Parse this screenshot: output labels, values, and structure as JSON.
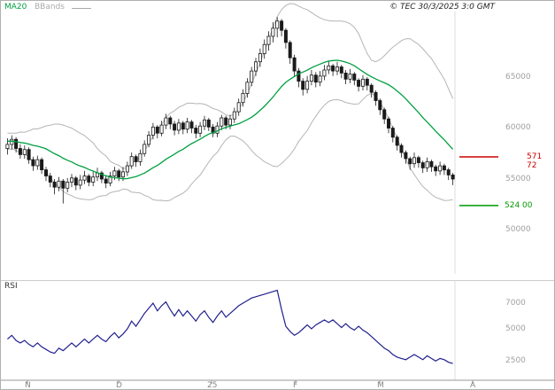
{
  "header": {
    "ma20_label": "MA20",
    "bbands_label": "BBands",
    "copyright": "© TEC 30/3/2025 3:0 GMT"
  },
  "colors": {
    "ma20": "#00a040",
    "bbands": "#b5b5b5",
    "candle": "#1a1a1a",
    "rsi": "#202090",
    "level_resistance": "#cc0000",
    "level_support": "#009900"
  },
  "chart_data": [
    {
      "type": "candlestick",
      "title": "",
      "xlabel": "",
      "ylabel": "",
      "y_range": [
        48500,
        71500
      ],
      "grid": false,
      "overlays": [
        "MA20",
        "BBands"
      ],
      "y_ticks": [
        {
          "label": "65000",
          "value": 65000
        },
        {
          "label": "60000",
          "value": 60000
        },
        {
          "label": "55000",
          "value": 55000
        },
        {
          "label": "50000",
          "value": 50000
        }
      ],
      "levels": [
        {
          "label": "571 72",
          "value": 57172,
          "color_key": "level_resistance"
        },
        {
          "label": "524 00",
          "value": 52400,
          "color_key": "level_support"
        }
      ],
      "x_labels": [
        "N",
        "D",
        "25",
        "F",
        "M",
        "A"
      ],
      "bband_seed": [
        59500,
        59000,
        58500,
        59200,
        58800,
        58300,
        58900,
        58500,
        58100,
        58600
      ],
      "candles": [
        [
          58000,
          59000,
          57400,
          58400
        ],
        [
          58400,
          59300,
          57900,
          58900
        ],
        [
          58900,
          59100,
          57600,
          58000
        ],
        [
          58000,
          58400,
          57000,
          57400
        ],
        [
          57400,
          58300,
          57000,
          57900
        ],
        [
          57900,
          58100,
          56500,
          56900
        ],
        [
          56900,
          57200,
          55800,
          56300
        ],
        [
          56300,
          57300,
          55900,
          56900
        ],
        [
          56900,
          57100,
          55500,
          55900
        ],
        [
          55900,
          56200,
          54800,
          55300
        ],
        [
          55300,
          55600,
          54200,
          54700
        ],
        [
          54700,
          55000,
          53500,
          54200
        ],
        [
          54200,
          55200,
          53800,
          54800
        ],
        [
          54800,
          55000,
          52600,
          54100
        ],
        [
          54100,
          55100,
          53700,
          54700
        ],
        [
          54700,
          55500,
          54200,
          55100
        ],
        [
          55100,
          55300,
          53900,
          54400
        ],
        [
          54400,
          55400,
          54000,
          54900
        ],
        [
          54900,
          55800,
          54500,
          55300
        ],
        [
          55300,
          55500,
          54300,
          54700
        ],
        [
          54700,
          55700,
          54300,
          55200
        ],
        [
          55200,
          56100,
          54800,
          55600
        ],
        [
          55600,
          55800,
          54600,
          55000
        ],
        [
          55000,
          55300,
          54100,
          54600
        ],
        [
          54600,
          55700,
          54300,
          55300
        ],
        [
          55300,
          56200,
          54900,
          55800
        ],
        [
          55800,
          56000,
          54800,
          55200
        ],
        [
          55200,
          56200,
          54800,
          55700
        ],
        [
          55700,
          56700,
          55300,
          56300
        ],
        [
          56300,
          57600,
          56000,
          57200
        ],
        [
          57200,
          57400,
          56200,
          56700
        ],
        [
          56700,
          57900,
          56300,
          57500
        ],
        [
          57500,
          58800,
          57200,
          58400
        ],
        [
          58400,
          59700,
          58100,
          59300
        ],
        [
          59300,
          60500,
          58900,
          60100
        ],
        [
          60100,
          60300,
          59000,
          59500
        ],
        [
          59500,
          60700,
          59200,
          60300
        ],
        [
          60300,
          61400,
          59900,
          61000
        ],
        [
          61000,
          61200,
          59900,
          60400
        ],
        [
          60400,
          60700,
          59300,
          59800
        ],
        [
          59800,
          60900,
          59400,
          60500
        ],
        [
          60500,
          60700,
          59400,
          59900
        ],
        [
          59900,
          61000,
          59500,
          60600
        ],
        [
          60600,
          60800,
          59500,
          60000
        ],
        [
          60000,
          60300,
          59000,
          59500
        ],
        [
          59500,
          60600,
          59100,
          60200
        ],
        [
          60200,
          61200,
          59800,
          60800
        ],
        [
          60800,
          61000,
          59700,
          60100
        ],
        [
          60100,
          60400,
          59100,
          59500
        ],
        [
          59500,
          60600,
          59100,
          60200
        ],
        [
          60200,
          61300,
          59800,
          61000
        ],
        [
          61000,
          61200,
          59900,
          60300
        ],
        [
          60300,
          61300,
          59900,
          60900
        ],
        [
          60900,
          62000,
          60500,
          61600
        ],
        [
          61600,
          62900,
          61200,
          62500
        ],
        [
          62500,
          63800,
          62100,
          63400
        ],
        [
          63400,
          64900,
          63000,
          64500
        ],
        [
          64500,
          66000,
          64100,
          65600
        ],
        [
          65600,
          66900,
          65100,
          66500
        ],
        [
          66500,
          67800,
          66000,
          67300
        ],
        [
          67300,
          68700,
          66800,
          68200
        ],
        [
          68200,
          69500,
          67600,
          69000
        ],
        [
          69000,
          70400,
          68400,
          69800
        ],
        [
          69800,
          70900,
          68900,
          70500
        ],
        [
          70500,
          70700,
          69000,
          69600
        ],
        [
          69600,
          69800,
          67800,
          68400
        ],
        [
          68400,
          68600,
          66300,
          66900
        ],
        [
          66900,
          67200,
          65000,
          65600
        ],
        [
          65600,
          65900,
          64000,
          64600
        ],
        [
          64600,
          64900,
          63200,
          63800
        ],
        [
          63800,
          65100,
          63400,
          64600
        ],
        [
          64600,
          65700,
          64200,
          65200
        ],
        [
          65200,
          65500,
          64000,
          64500
        ],
        [
          64500,
          65600,
          64100,
          65100
        ],
        [
          65100,
          66200,
          64700,
          65700
        ],
        [
          65700,
          66600,
          65300,
          66100
        ],
        [
          66100,
          66300,
          65100,
          65600
        ],
        [
          65600,
          66500,
          65200,
          66000
        ],
        [
          66000,
          66200,
          64900,
          65400
        ],
        [
          65400,
          65700,
          64300,
          64800
        ],
        [
          64800,
          65800,
          64400,
          65300
        ],
        [
          65300,
          65500,
          64200,
          64700
        ],
        [
          64700,
          64900,
          63600,
          64100
        ],
        [
          64100,
          65200,
          63700,
          64800
        ],
        [
          64800,
          65000,
          63700,
          64200
        ],
        [
          64200,
          64400,
          63000,
          63500
        ],
        [
          63500,
          63700,
          62200,
          62700
        ],
        [
          62700,
          62900,
          61300,
          61800
        ],
        [
          61800,
          62000,
          60400,
          60900
        ],
        [
          60900,
          61100,
          59500,
          60000
        ],
        [
          60000,
          60200,
          58600,
          59100
        ],
        [
          59100,
          59300,
          57800,
          58300
        ],
        [
          58300,
          58500,
          57100,
          57600
        ],
        [
          57600,
          57800,
          56500,
          57000
        ],
        [
          57000,
          57200,
          55900,
          56500
        ],
        [
          56500,
          57600,
          56100,
          57100
        ],
        [
          57100,
          57300,
          56100,
          56600
        ],
        [
          56600,
          56800,
          55600,
          56100
        ],
        [
          56100,
          57100,
          55700,
          56700
        ],
        [
          56700,
          56900,
          55700,
          56200
        ],
        [
          56200,
          56400,
          55300,
          55800
        ],
        [
          55800,
          56700,
          55400,
          56300
        ],
        [
          56300,
          56500,
          55400,
          55900
        ],
        [
          55900,
          56100,
          54900,
          55400
        ],
        [
          55400,
          55600,
          54400,
          55000
        ]
      ]
    },
    {
      "type": "line",
      "label": "RSI",
      "y_ticks": [
        {
          "label": "7000",
          "value": 70
        },
        {
          "label": "5000",
          "value": 50
        },
        {
          "label": "2500",
          "value": 25
        }
      ],
      "values": [
        42,
        45,
        41,
        39,
        41,
        38,
        36,
        39,
        36,
        34,
        32,
        31,
        35,
        33,
        36,
        39,
        36,
        39,
        42,
        39,
        42,
        45,
        42,
        40,
        44,
        47,
        43,
        46,
        50,
        56,
        52,
        57,
        62,
        66,
        70,
        64,
        68,
        71,
        65,
        60,
        65,
        60,
        64,
        60,
        56,
        61,
        64,
        59,
        55,
        60,
        64,
        59,
        62,
        65,
        68,
        70,
        72,
        74,
        75,
        76,
        77,
        78,
        79,
        80,
        65,
        52,
        48,
        45,
        47,
        50,
        53,
        50,
        53,
        55,
        57,
        55,
        57,
        54,
        51,
        54,
        51,
        49,
        52,
        49,
        47,
        44,
        41,
        38,
        35,
        33,
        30,
        28,
        27,
        26,
        28,
        30,
        28,
        26,
        29,
        27,
        25,
        27,
        26,
        24,
        23
      ]
    }
  ]
}
